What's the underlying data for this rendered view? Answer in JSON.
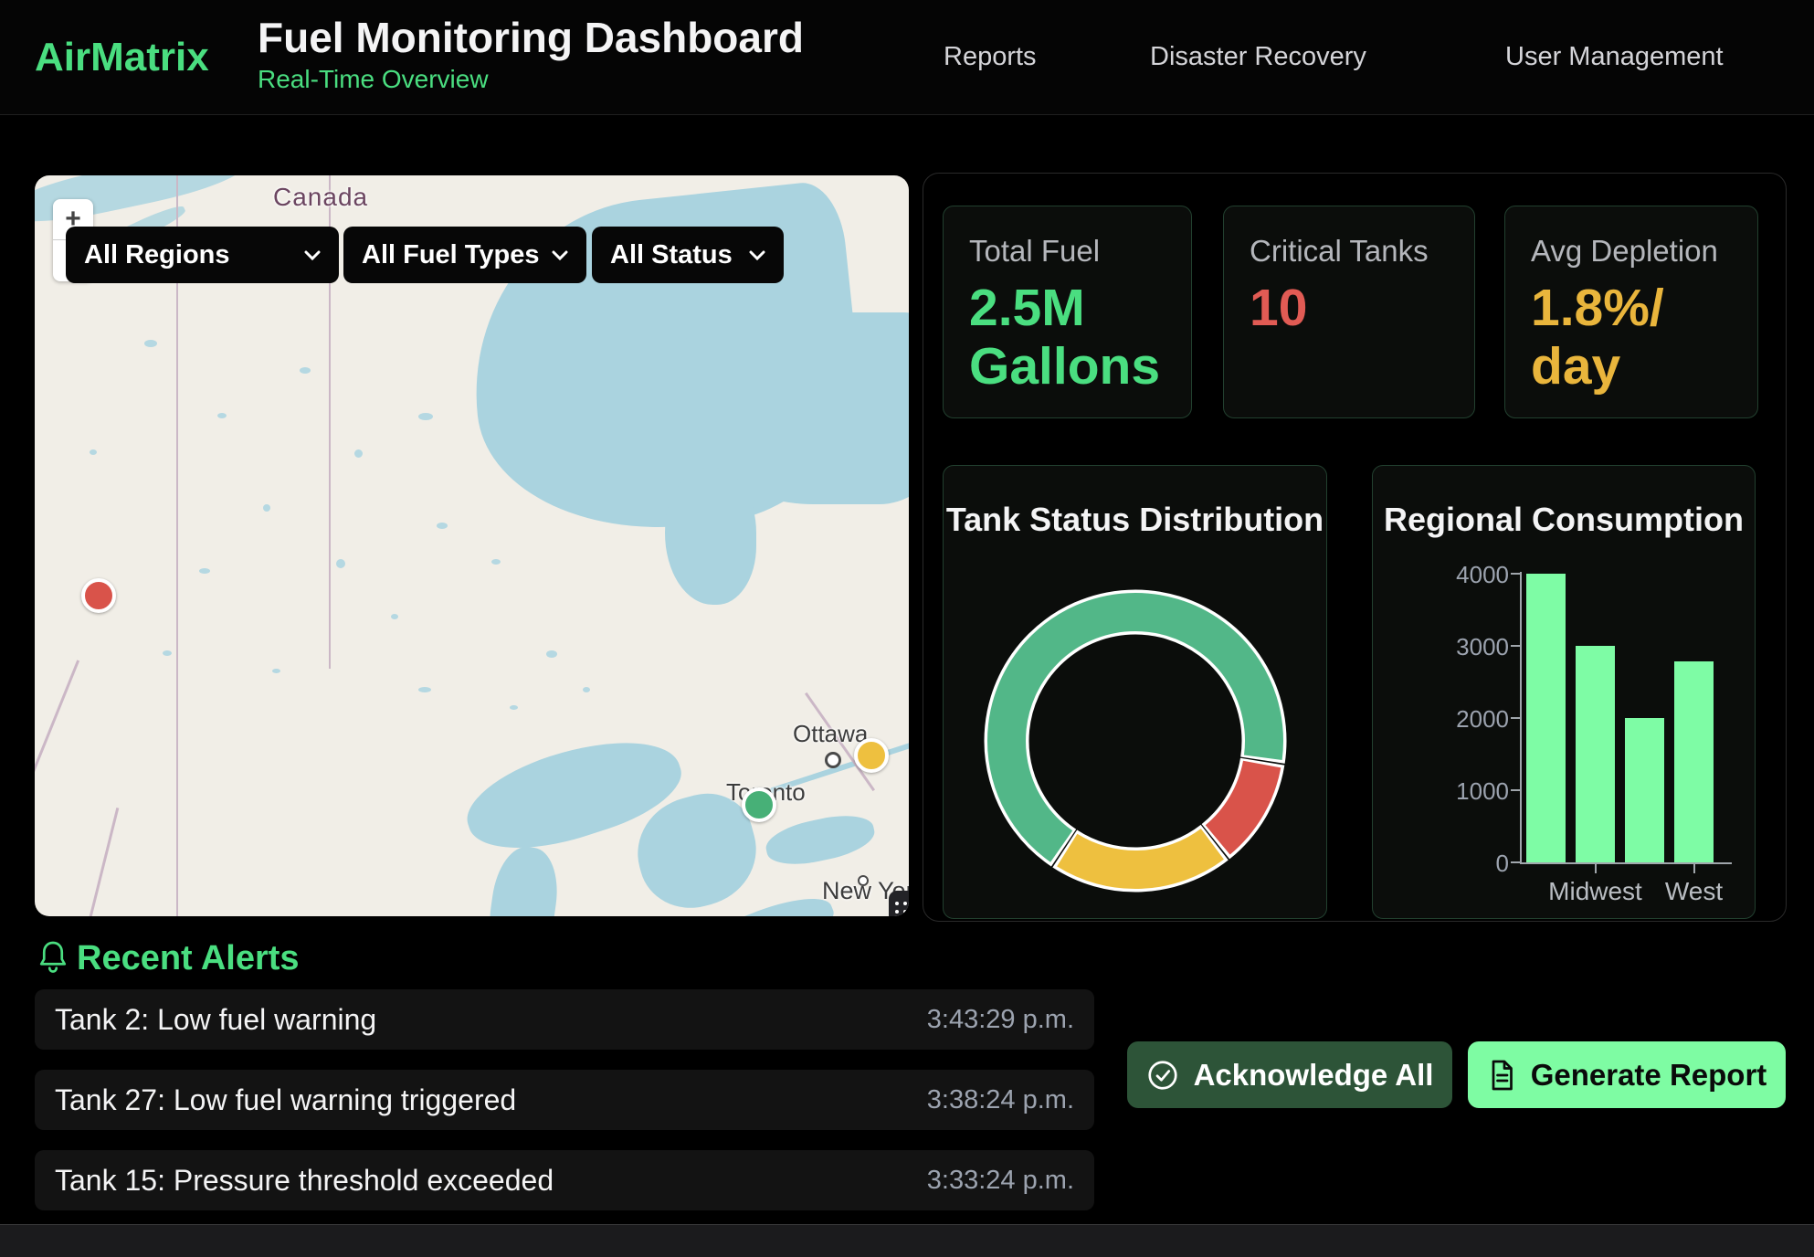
{
  "header": {
    "brand": "AirMatrix",
    "title": "Fuel Monitoring Dashboard",
    "subtitle": "Real-Time Overview",
    "nav": [
      {
        "label": "Reports"
      },
      {
        "label": "Disaster Recovery"
      },
      {
        "label": "User Management"
      }
    ]
  },
  "map": {
    "country_label": "Canada",
    "zoom_in": "+",
    "zoom_out": "−",
    "filters": [
      {
        "value": "All Regions"
      },
      {
        "value": "All Fuel Types"
      },
      {
        "value": "All Status"
      }
    ],
    "cities": [
      {
        "name": "Ottawa"
      },
      {
        "name": "Toronto"
      },
      {
        "name": "New York"
      }
    ],
    "markers": [
      {
        "status": "critical",
        "color": "#d9534a"
      },
      {
        "status": "warning",
        "color": "#eec03f"
      },
      {
        "status": "normal",
        "color": "#47b077"
      }
    ]
  },
  "stats": [
    {
      "label": "Total Fuel",
      "value": "2.5M Gallons",
      "color": "#4ade80"
    },
    {
      "label": "Critical Tanks",
      "value": "10",
      "color": "#e15b54"
    },
    {
      "label": "Avg Depletion",
      "value": "1.8%/ day",
      "color": "#e9b53c"
    }
  ],
  "chart_data": [
    {
      "type": "doughnut",
      "title": "Tank Status Distribution",
      "slices": [
        {
          "label": "normal",
          "value": 67,
          "color": "#52b788"
        },
        {
          "label": "critical",
          "value": 11,
          "color": "#d9534a"
        },
        {
          "label": "warning",
          "value": 19,
          "color": "#eec03f"
        }
      ],
      "start_angle": 215,
      "gap_degrees": 3,
      "border_color": "#ffffff",
      "legend": "none"
    },
    {
      "type": "bar",
      "title": "Regional Consumption",
      "values": [
        4000,
        3000,
        2000,
        2780
      ],
      "x_tick_labels": [
        "",
        "Midwest",
        "",
        "West"
      ],
      "y_ticks": [
        0,
        1000,
        2000,
        3000,
        4000
      ],
      "ylim": [
        0,
        4000
      ],
      "bar_color": "#7efca5",
      "grid": "off",
      "legend": "none"
    }
  ],
  "alerts": {
    "title": "Recent Alerts",
    "items": [
      {
        "message": "Tank 2: Low fuel warning",
        "time": "3:43:29 p.m."
      },
      {
        "message": "Tank 27: Low fuel warning triggered",
        "time": "3:38:24 p.m."
      },
      {
        "message": "Tank 15: Pressure threshold exceeded",
        "time": "3:33:24 p.m."
      }
    ]
  },
  "actions": {
    "acknowledge": "Acknowledge All",
    "generate": "Generate Report"
  },
  "colors": {
    "accent_green": "#4ade80",
    "bright_green": "#7efca3",
    "dark_green_button": "#2d5438",
    "critical_red": "#e15b54",
    "warning_amber": "#e9b53c"
  }
}
